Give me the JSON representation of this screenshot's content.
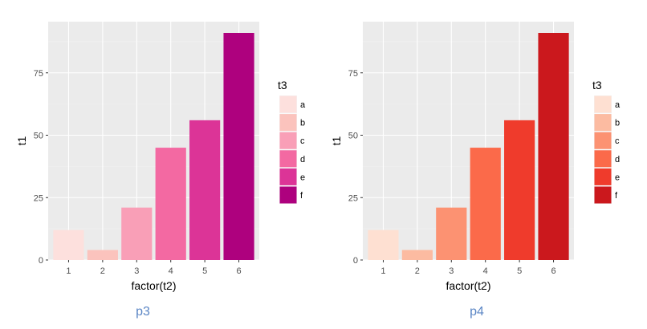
{
  "chart_data": [
    {
      "type": "bar",
      "categories": [
        "1",
        "2",
        "3",
        "4",
        "5",
        "6"
      ],
      "values": [
        12,
        4,
        21,
        45,
        56,
        91
      ],
      "fill_groups": [
        "a",
        "b",
        "c",
        "d",
        "e",
        "f"
      ],
      "xlabel": "factor(t2)",
      "ylabel": "t1",
      "yticks": [
        0,
        25,
        50,
        75
      ],
      "ylim": [
        0,
        95.5
      ],
      "grid": true,
      "legend": {
        "title": "t3",
        "position": "right",
        "labels": [
          "a",
          "b",
          "c",
          "d",
          "e",
          "f"
        ]
      },
      "colors": [
        "#fde0dd",
        "#fbc3bd",
        "#f99fb7",
        "#f369a2",
        "#dc3497",
        "#ae017e"
      ],
      "caption": "p3"
    },
    {
      "type": "bar",
      "categories": [
        "1",
        "2",
        "3",
        "4",
        "5",
        "6"
      ],
      "values": [
        12,
        4,
        21,
        45,
        56,
        91
      ],
      "fill_groups": [
        "a",
        "b",
        "c",
        "d",
        "e",
        "f"
      ],
      "xlabel": "factor(t2)",
      "ylabel": "t1",
      "yticks": [
        0,
        25,
        50,
        75
      ],
      "ylim": [
        0,
        95.5
      ],
      "grid": true,
      "legend": {
        "title": "t3",
        "position": "right",
        "labels": [
          "a",
          "b",
          "c",
          "d",
          "e",
          "f"
        ]
      },
      "colors": [
        "#fee0d2",
        "#fcbba1",
        "#fc9272",
        "#fb6a4a",
        "#ef3b2c",
        "#cb181d"
      ],
      "caption": "p4"
    }
  ],
  "theme": {
    "panel_bg": "#ebebeb",
    "grid_major": "#ffffff",
    "grid_minor": "#f2f2f2",
    "axis_text": "#4d4d4d",
    "caption_color": "#5b86c5"
  }
}
